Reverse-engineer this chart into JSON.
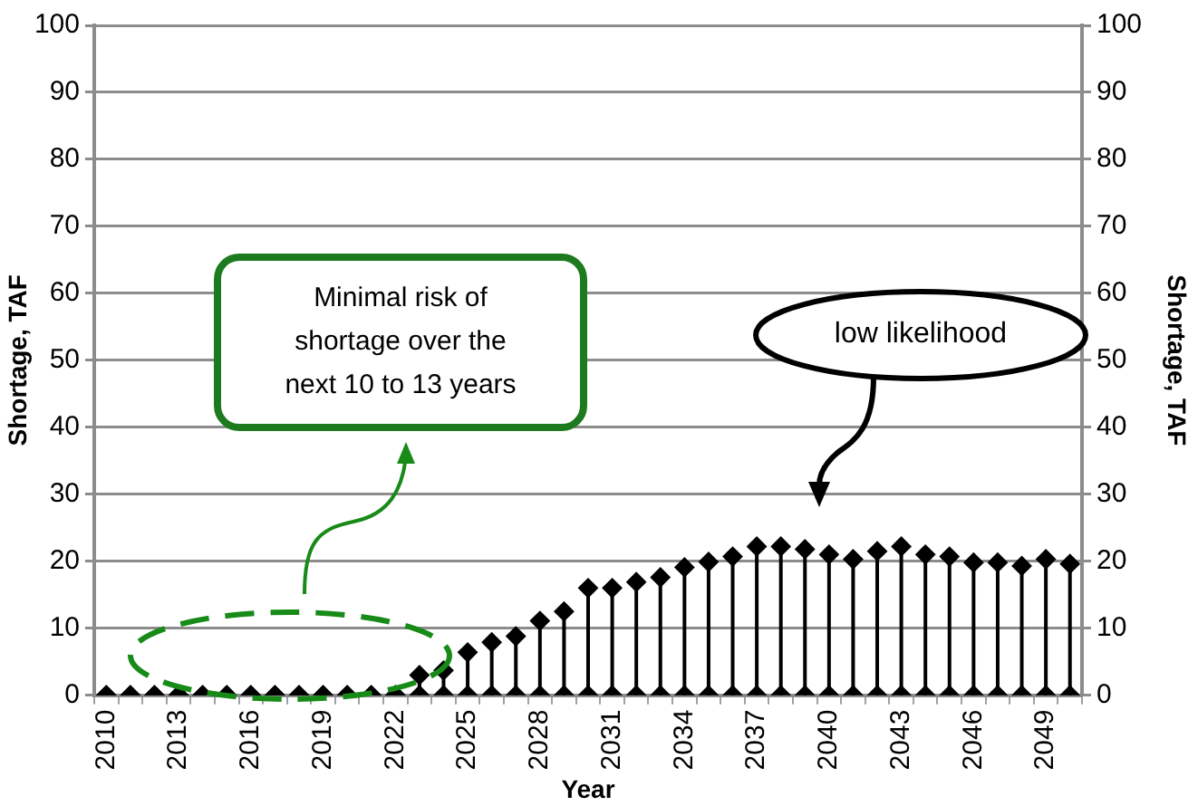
{
  "chart_data": {
    "type": "lollipop",
    "xlabel": "Year",
    "ylabel": "Shortage, TAF",
    "y2label": "Shortage, TAF",
    "categories": [
      "2010",
      null,
      null,
      "2013",
      null,
      null,
      "2016",
      null,
      null,
      "2019",
      null,
      null,
      "2022",
      null,
      null,
      "2025",
      null,
      null,
      "2028",
      null,
      null,
      "2031",
      null,
      null,
      "2034",
      null,
      null,
      "2037",
      null,
      null,
      "2040",
      null,
      null,
      "2043",
      null,
      null,
      "2046",
      null,
      null,
      "2049",
      null
    ],
    "series": [
      {
        "type": "scatter",
        "color": "#000000",
        "values": [
          0,
          0,
          0,
          0,
          0,
          0,
          0,
          0,
          0,
          0,
          0,
          0,
          0,
          0,
          0,
          0,
          0,
          0,
          0,
          0,
          0,
          0,
          0,
          0,
          0,
          0,
          0,
          0,
          0,
          0,
          0,
          0,
          0,
          0,
          0,
          0,
          0,
          0,
          0,
          0,
          0
        ]
      },
      {
        "color": "#000000",
        "values": [
          0,
          0,
          0,
          0,
          0,
          0,
          0,
          0,
          0,
          0,
          0,
          0,
          0,
          3.0,
          3.7,
          6.4,
          7.9,
          8.8,
          11.1,
          12.5,
          16.0,
          16.0,
          16.9,
          17.6,
          19.1,
          19.9,
          20.7,
          22.2,
          22.2,
          21.8,
          21.0,
          20.3,
          21.5,
          22.2,
          21.0,
          20.7,
          19.8,
          19.8,
          19.3,
          20.3,
          19.6
        ]
      }
    ],
    "ylim": [
      0,
      100
    ],
    "yticks": [
      0,
      10,
      20,
      30,
      40,
      50,
      60,
      70,
      80,
      90,
      100
    ],
    "y2lim": [
      0,
      100
    ],
    "y2ticks": [
      0,
      10,
      20,
      30,
      40,
      50,
      60,
      70,
      80,
      90,
      100
    ],
    "grid": "y",
    "legend": false,
    "marker": "diamond",
    "annotations": [
      "Minimal risk of shortage over the next 10 to 13 years",
      "low likelihood"
    ]
  }
}
